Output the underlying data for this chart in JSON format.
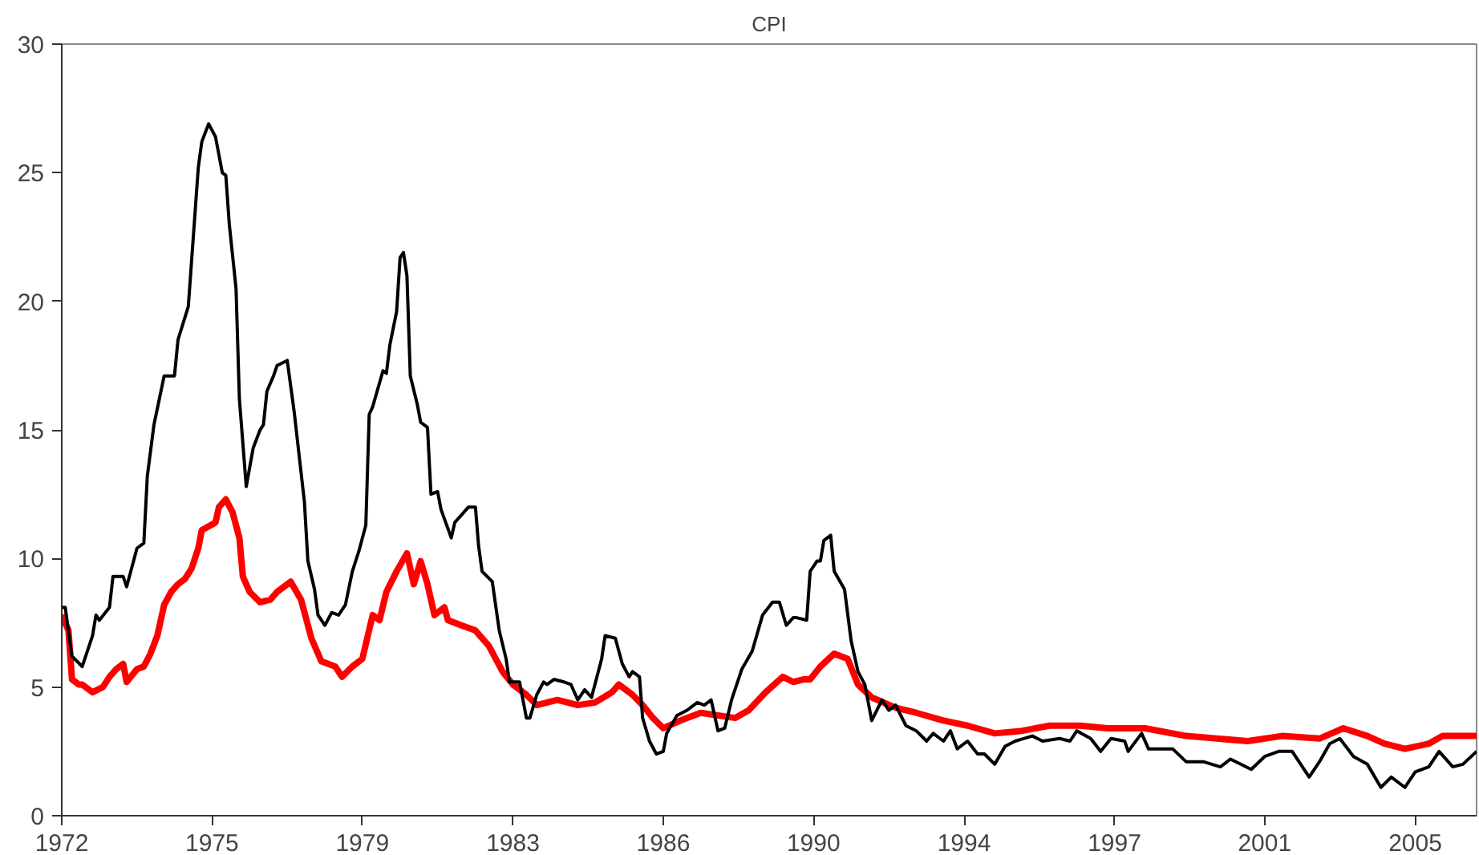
{
  "chart_data": {
    "type": "line",
    "title": "CPI",
    "xlim": [
      "1972-01",
      "2006-07"
    ],
    "xticks": [
      {
        "value": "1972-01",
        "label": "1972"
      },
      {
        "value": "1975-09",
        "label": "1975"
      },
      {
        "value": "1979-05",
        "label": "1979"
      },
      {
        "value": "1983-01",
        "label": "1983"
      },
      {
        "value": "1986-09",
        "label": "1986"
      },
      {
        "value": "1990-05",
        "label": "1990"
      },
      {
        "value": "1994-01",
        "label": "1994"
      },
      {
        "value": "1997-09",
        "label": "1997"
      },
      {
        "value": "2001-05",
        "label": "2001"
      },
      {
        "value": "2005-01",
        "label": "2005"
      }
    ],
    "ylim": [
      0,
      30
    ],
    "yticks": [
      0,
      5,
      10,
      15,
      20,
      25,
      30
    ],
    "grid": false,
    "series": [
      {
        "color": "#000000",
        "x": [
          "1972-01",
          "1972-02",
          "1972-04",
          "1972-07",
          "1972-10",
          "1972-11",
          "1972-12",
          "1973-03",
          "1973-04",
          "1973-07",
          "1973-08",
          "1973-11",
          "1974-01",
          "1974-02",
          "1974-04",
          "1974-07",
          "1974-10",
          "1974-11",
          "1975-02",
          "1975-03",
          "1975-05",
          "1975-06",
          "1975-08",
          "1975-10",
          "1975-12",
          "1976-01",
          "1976-02",
          "1976-04",
          "1976-05",
          "1976-07",
          "1976-09",
          "1976-11",
          "1976-12",
          "1977-01",
          "1977-03",
          "1977-04",
          "1977-07",
          "1977-09",
          "1977-12",
          "1978-01",
          "1978-03",
          "1978-04",
          "1978-06",
          "1978-08",
          "1978-10",
          "1978-12",
          "1979-02",
          "1979-04",
          "1979-06",
          "1979-07",
          "1979-08",
          "1979-11",
          "1979-12",
          "1980-01",
          "1980-03",
          "1980-04",
          "1980-05",
          "1980-06",
          "1980-07",
          "1980-09",
          "1980-10",
          "1980-12",
          "1981-01",
          "1981-03",
          "1981-04",
          "1981-07",
          "1981-08",
          "1981-10",
          "1981-12",
          "1982-02",
          "1982-03",
          "1982-04",
          "1982-07",
          "1982-09",
          "1982-11",
          "1982-12",
          "1983-03",
          "1983-05",
          "1983-06",
          "1983-08",
          "1983-10",
          "1983-11",
          "1984-01",
          "1984-04",
          "1984-06",
          "1984-08",
          "1984-10",
          "1984-12",
          "1985-03",
          "1985-04",
          "1985-07",
          "1985-09",
          "1985-11",
          "1985-12",
          "1986-02",
          "1986-03",
          "1986-05",
          "1986-07",
          "1986-09",
          "1986-10",
          "1987-01",
          "1987-04",
          "1987-07",
          "1987-09",
          "1987-11",
          "1988-01",
          "1988-03",
          "1988-05",
          "1988-08",
          "1988-11",
          "1989-02",
          "1989-05",
          "1989-07",
          "1989-09",
          "1989-11",
          "1989-12",
          "1990-03",
          "1990-04",
          "1990-06",
          "1990-07",
          "1990-08",
          "1990-10",
          "1990-11",
          "1991-02",
          "1991-04",
          "1991-06",
          "1991-08",
          "1991-10",
          "1992-01",
          "1992-03",
          "1992-05",
          "1992-08",
          "1992-11",
          "1993-02",
          "1993-04",
          "1993-07",
          "1993-09",
          "1993-11",
          "1994-02",
          "1994-05",
          "1994-07",
          "1994-10",
          "1995-01",
          "1995-04",
          "1995-09",
          "1995-12",
          "1996-05",
          "1996-08",
          "1996-10",
          "1997-02",
          "1997-05",
          "1997-08",
          "1997-12",
          "1998-01",
          "1998-05",
          "1998-07",
          "1999-02",
          "1999-06",
          "1999-11",
          "2000-04",
          "2000-07",
          "2001-01",
          "2001-05",
          "2001-09",
          "2002-01",
          "2002-06",
          "2002-09",
          "2002-12",
          "2003-03",
          "2003-07",
          "2003-11",
          "2004-03",
          "2004-06",
          "2004-10",
          "2005-01",
          "2005-05",
          "2005-08",
          "2005-12",
          "2006-03",
          "2006-07"
        ],
        "values": [
          8.1,
          8.1,
          6.2,
          5.8,
          7.0,
          7.8,
          7.6,
          8.1,
          9.3,
          9.3,
          8.9,
          10.4,
          10.6,
          13.2,
          15.2,
          17.1,
          17.1,
          18.5,
          19.8,
          21.5,
          25.2,
          26.2,
          26.9,
          26.4,
          25.0,
          24.9,
          23.0,
          20.5,
          16.2,
          12.8,
          14.3,
          15.0,
          15.2,
          16.5,
          17.1,
          17.5,
          17.7,
          15.7,
          12.2,
          9.9,
          8.8,
          7.8,
          7.4,
          7.9,
          7.8,
          8.2,
          9.5,
          10.3,
          11.3,
          15.6,
          15.9,
          17.3,
          17.2,
          18.3,
          19.6,
          21.7,
          21.9,
          21.0,
          17.1,
          16.0,
          15.3,
          15.1,
          12.5,
          12.6,
          11.9,
          10.8,
          11.4,
          11.7,
          12.0,
          12.0,
          10.5,
          9.5,
          9.1,
          7.2,
          6.1,
          5.2,
          5.2,
          3.8,
          3.8,
          4.7,
          5.2,
          5.1,
          5.3,
          5.2,
          5.1,
          4.5,
          4.9,
          4.6,
          6.1,
          7.0,
          6.9,
          5.9,
          5.4,
          5.6,
          5.4,
          3.8,
          2.9,
          2.4,
          2.5,
          3.2,
          3.9,
          4.1,
          4.4,
          4.3,
          4.5,
          3.3,
          3.4,
          4.5,
          5.7,
          6.4,
          7.8,
          8.3,
          8.3,
          7.4,
          7.7,
          7.7,
          7.6,
          9.5,
          9.9,
          9.9,
          10.7,
          10.9,
          9.5,
          8.8,
          6.8,
          5.6,
          5.1,
          3.7,
          4.5,
          4.1,
          4.3,
          3.5,
          3.3,
          2.9,
          3.2,
          2.9,
          3.3,
          2.6,
          2.9,
          2.4,
          2.4,
          2.0,
          2.7,
          2.9,
          3.1,
          2.9,
          3.0,
          2.9,
          3.3,
          3.0,
          2.5,
          3.0,
          2.9,
          2.5,
          3.2,
          2.6,
          2.6,
          2.1,
          2.1,
          1.9,
          2.2,
          1.8,
          2.3,
          2.5,
          2.5,
          1.5,
          2.1,
          2.8,
          3.0,
          2.3,
          2.0,
          1.1,
          1.5,
          1.1,
          1.7,
          1.9,
          2.5,
          1.9,
          2.0,
          2.5
        ]
      },
      {
        "color": "#ff0000",
        "x": [
          "1972-01",
          "1972-03",
          "1972-04",
          "1972-06",
          "1972-07",
          "1972-10",
          "1973-01",
          "1973-03",
          "1973-05",
          "1973-07",
          "1973-08",
          "1973-11",
          "1974-01",
          "1974-03",
          "1974-05",
          "1974-07",
          "1974-09",
          "1974-11",
          "1975-01",
          "1975-03",
          "1975-05",
          "1975-06",
          "1975-10",
          "1975-11",
          "1976-01",
          "1976-03",
          "1976-05",
          "1976-06",
          "1976-08",
          "1976-11",
          "1977-02",
          "1977-04",
          "1977-08",
          "1977-11",
          "1978-02",
          "1978-05",
          "1978-09",
          "1978-11",
          "1979-02",
          "1979-05",
          "1979-08",
          "1979-10",
          "1979-12",
          "1980-03",
          "1980-06",
          "1980-08",
          "1980-10",
          "1980-12",
          "1981-02",
          "1981-05",
          "1981-06",
          "1981-10",
          "1982-02",
          "1982-06",
          "1982-10",
          "1983-01",
          "1983-05",
          "1983-08",
          "1984-02",
          "1984-08",
          "1985-01",
          "1985-06",
          "1985-08",
          "1985-12",
          "1986-03",
          "1986-06",
          "1986-09",
          "1987-02",
          "1987-08",
          "1988-01",
          "1988-06",
          "1988-10",
          "1989-03",
          "1989-08",
          "1989-11",
          "1990-02",
          "1990-04",
          "1990-07",
          "1990-11",
          "1991-03",
          "1991-06",
          "1991-10",
          "1992-05",
          "1992-11",
          "1993-07",
          "1994-02",
          "1994-10",
          "1995-06",
          "1996-02",
          "1996-11",
          "1997-07",
          "1997-12",
          "1998-06",
          "1999-06",
          "2000-12",
          "2001-10",
          "2002-09",
          "2003-04",
          "2003-11",
          "2004-04",
          "2004-10",
          "2005-05",
          "2005-09",
          "2006-07"
        ],
        "values": [
          7.8,
          7.2,
          5.3,
          5.1,
          5.1,
          4.8,
          5.0,
          5.4,
          5.7,
          5.9,
          5.2,
          5.7,
          5.8,
          6.3,
          7.0,
          8.2,
          8.7,
          9.0,
          9.2,
          9.6,
          10.4,
          11.1,
          11.4,
          12.0,
          12.3,
          11.8,
          10.8,
          9.3,
          8.7,
          8.3,
          8.4,
          8.7,
          9.1,
          8.4,
          6.9,
          6.0,
          5.8,
          5.4,
          5.8,
          6.1,
          7.8,
          7.6,
          8.7,
          9.5,
          10.2,
          9.0,
          9.9,
          9.0,
          7.8,
          8.1,
          7.6,
          7.4,
          7.2,
          6.6,
          5.6,
          5.1,
          4.7,
          4.3,
          4.5,
          4.3,
          4.4,
          4.8,
          5.1,
          4.7,
          4.3,
          3.8,
          3.4,
          3.7,
          4.0,
          3.9,
          3.8,
          4.1,
          4.8,
          5.4,
          5.2,
          5.3,
          5.3,
          5.8,
          6.3,
          6.1,
          5.1,
          4.6,
          4.2,
          4.0,
          3.7,
          3.5,
          3.2,
          3.3,
          3.5,
          3.5,
          3.4,
          3.4,
          3.4,
          3.1,
          2.9,
          3.1,
          3.0,
          3.4,
          3.1,
          2.8,
          2.6,
          2.8,
          3.1,
          3.1
        ]
      }
    ]
  }
}
